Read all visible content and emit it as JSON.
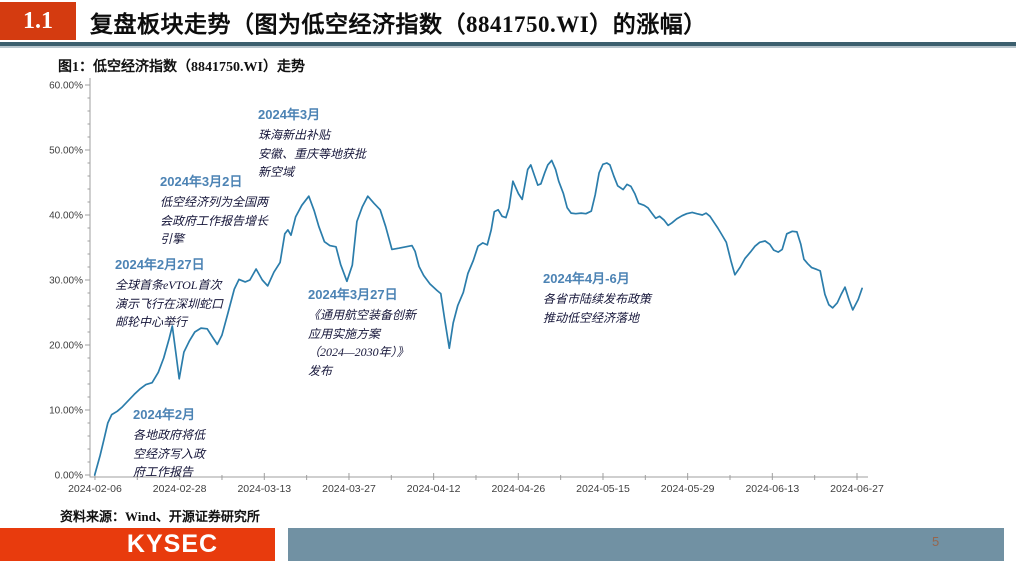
{
  "slide": {
    "section_number": "1.1",
    "title": "复盘板块走势（图为低空经济指数（8841750.WI）的涨幅）",
    "source": "资料来源：Wind、开源证券研究所",
    "logo_text": "KYSEC",
    "page_number": "5"
  },
  "colors": {
    "accent_red": "#d43b10",
    "logo_red": "#e83b0d",
    "line_blue": "#2b7dab",
    "annotation_date_blue": "#4c83b4",
    "annotation_body": "#16163a",
    "footer_bar_gray": "#7191a3",
    "header_rule": "#3c5f6e",
    "axis_gray": "#9f9f9f",
    "tick_label": "#3f3f3f"
  },
  "chart_data": {
    "type": "line",
    "title": "图1：低空经济指数（8841750.WI）走势",
    "xlabel": "",
    "ylabel": "",
    "ylim": [
      0,
      60
    ],
    "grid": false,
    "legend": "none",
    "y_ticks": [
      "0.00%",
      "10.00%",
      "20.00%",
      "30.00%",
      "40.00%",
      "50.00%",
      "60.00%"
    ],
    "x_ticks": [
      "2024-02-06",
      "2024-02-28",
      "2024-03-13",
      "2024-03-27",
      "2024-04-12",
      "2024-04-26",
      "2024-05-15",
      "2024-05-29",
      "2024-06-13",
      "2024-06-27"
    ],
    "series": [
      {
        "name": "低空经济指数（8841750.WI）涨幅",
        "unit": "%",
        "points": [
          [
            0.006,
            0.0
          ],
          [
            0.013,
            3.0
          ],
          [
            0.018,
            5.5
          ],
          [
            0.023,
            8.0
          ],
          [
            0.028,
            9.3
          ],
          [
            0.035,
            9.8
          ],
          [
            0.041,
            10.4
          ],
          [
            0.049,
            11.4
          ],
          [
            0.057,
            12.4
          ],
          [
            0.064,
            13.2
          ],
          [
            0.072,
            13.9
          ],
          [
            0.08,
            14.2
          ],
          [
            0.088,
            15.8
          ],
          [
            0.095,
            18.0
          ],
          [
            0.102,
            21.0
          ],
          [
            0.106,
            22.9
          ],
          [
            0.111,
            18.5
          ],
          [
            0.115,
            14.8
          ],
          [
            0.121,
            18.9
          ],
          [
            0.128,
            20.6
          ],
          [
            0.135,
            22.0
          ],
          [
            0.143,
            22.6
          ],
          [
            0.151,
            22.5
          ],
          [
            0.159,
            21.0
          ],
          [
            0.164,
            20.1
          ],
          [
            0.17,
            21.5
          ],
          [
            0.178,
            25.0
          ],
          [
            0.186,
            28.6
          ],
          [
            0.192,
            30.1
          ],
          [
            0.2,
            29.7
          ],
          [
            0.206,
            30.0
          ],
          [
            0.214,
            31.7
          ],
          [
            0.222,
            30.0
          ],
          [
            0.229,
            29.1
          ],
          [
            0.237,
            31.2
          ],
          [
            0.245,
            32.7
          ],
          [
            0.251,
            37.1
          ],
          [
            0.255,
            37.7
          ],
          [
            0.259,
            36.9
          ],
          [
            0.265,
            39.7
          ],
          [
            0.273,
            41.5
          ],
          [
            0.282,
            42.9
          ],
          [
            0.289,
            40.6
          ],
          [
            0.295,
            38.2
          ],
          [
            0.302,
            35.9
          ],
          [
            0.309,
            35.3
          ],
          [
            0.317,
            35.1
          ],
          [
            0.323,
            32.4
          ],
          [
            0.331,
            29.8
          ],
          [
            0.338,
            32.3
          ],
          [
            0.344,
            39.0
          ],
          [
            0.351,
            41.3
          ],
          [
            0.358,
            42.9
          ],
          [
            0.366,
            41.8
          ],
          [
            0.374,
            40.8
          ],
          [
            0.381,
            38.2
          ],
          [
            0.389,
            34.7
          ],
          [
            0.398,
            34.9
          ],
          [
            0.407,
            35.1
          ],
          [
            0.415,
            35.3
          ],
          [
            0.419,
            34.4
          ],
          [
            0.424,
            32.1
          ],
          [
            0.43,
            30.7
          ],
          [
            0.438,
            29.4
          ],
          [
            0.447,
            28.4
          ],
          [
            0.452,
            27.9
          ],
          [
            0.457,
            24.0
          ],
          [
            0.463,
            19.5
          ],
          [
            0.468,
            23.4
          ],
          [
            0.474,
            26.1
          ],
          [
            0.481,
            28.1
          ],
          [
            0.487,
            31.0
          ],
          [
            0.494,
            33.0
          ],
          [
            0.5,
            35.2
          ],
          [
            0.506,
            35.7
          ],
          [
            0.512,
            35.4
          ],
          [
            0.517,
            37.7
          ],
          [
            0.521,
            40.5
          ],
          [
            0.526,
            40.8
          ],
          [
            0.531,
            39.8
          ],
          [
            0.536,
            39.6
          ],
          [
            0.54,
            41.1
          ],
          [
            0.545,
            45.2
          ],
          [
            0.552,
            43.3
          ],
          [
            0.557,
            42.4
          ],
          [
            0.561,
            45.0
          ],
          [
            0.564,
            47.0
          ],
          [
            0.568,
            47.7
          ],
          [
            0.573,
            46.0
          ],
          [
            0.577,
            44.6
          ],
          [
            0.581,
            44.8
          ],
          [
            0.586,
            46.5
          ],
          [
            0.59,
            47.7
          ],
          [
            0.595,
            48.4
          ],
          [
            0.6,
            47.0
          ],
          [
            0.604,
            45.2
          ],
          [
            0.61,
            43.3
          ],
          [
            0.615,
            41.1
          ],
          [
            0.62,
            40.3
          ],
          [
            0.626,
            40.2
          ],
          [
            0.633,
            40.3
          ],
          [
            0.639,
            40.2
          ],
          [
            0.646,
            40.6
          ],
          [
            0.651,
            43.1
          ],
          [
            0.656,
            46.5
          ],
          [
            0.661,
            47.8
          ],
          [
            0.666,
            48.0
          ],
          [
            0.67,
            47.7
          ],
          [
            0.675,
            46.0
          ],
          [
            0.68,
            44.5
          ],
          [
            0.687,
            43.9
          ],
          [
            0.692,
            44.7
          ],
          [
            0.697,
            44.4
          ],
          [
            0.702,
            43.3
          ],
          [
            0.707,
            41.8
          ],
          [
            0.714,
            41.5
          ],
          [
            0.719,
            41.1
          ],
          [
            0.724,
            40.3
          ],
          [
            0.729,
            39.5
          ],
          [
            0.734,
            39.8
          ],
          [
            0.74,
            39.2
          ],
          [
            0.745,
            38.4
          ],
          [
            0.75,
            38.8
          ],
          [
            0.756,
            39.4
          ],
          [
            0.763,
            39.9
          ],
          [
            0.769,
            40.2
          ],
          [
            0.776,
            40.4
          ],
          [
            0.782,
            40.2
          ],
          [
            0.789,
            40.0
          ],
          [
            0.794,
            40.3
          ],
          [
            0.799,
            39.8
          ],
          [
            0.804,
            38.9
          ],
          [
            0.809,
            38.0
          ],
          [
            0.814,
            37.0
          ],
          [
            0.82,
            35.8
          ],
          [
            0.826,
            32.9
          ],
          [
            0.831,
            30.8
          ],
          [
            0.838,
            32.0
          ],
          [
            0.844,
            33.3
          ],
          [
            0.851,
            34.3
          ],
          [
            0.857,
            35.2
          ],
          [
            0.863,
            35.8
          ],
          [
            0.87,
            36.0
          ],
          [
            0.876,
            35.5
          ],
          [
            0.881,
            34.6
          ],
          [
            0.887,
            34.3
          ],
          [
            0.892,
            34.7
          ],
          [
            0.898,
            37.1
          ],
          [
            0.905,
            37.5
          ],
          [
            0.911,
            37.4
          ],
          [
            0.916,
            35.5
          ],
          [
            0.92,
            33.2
          ],
          [
            0.925,
            32.5
          ],
          [
            0.93,
            31.9
          ],
          [
            0.937,
            31.6
          ],
          [
            0.941,
            31.4
          ],
          [
            0.947,
            27.8
          ],
          [
            0.952,
            26.2
          ],
          [
            0.957,
            25.7
          ],
          [
            0.963,
            26.5
          ],
          [
            0.968,
            27.8
          ],
          [
            0.973,
            28.9
          ],
          [
            0.978,
            27.0
          ],
          [
            0.983,
            25.4
          ],
          [
            0.99,
            27.0
          ],
          [
            0.995,
            28.7
          ]
        ]
      }
    ],
    "annotations": [
      {
        "date": "2024年2月27日",
        "text": "全球首条eVTOL首次\n演示飞行在深圳蛇口\n邮轮中心举行"
      },
      {
        "date": "2024年3月2日",
        "text": "低空经济列为全国两\n会政府工作报告增长\n引擎"
      },
      {
        "date": "2024年3月",
        "text": "珠海新出补贴\n安徽、重庆等地获批\n新空域"
      },
      {
        "date": "2024年3月27日",
        "text": "《通用航空装备创新\n应用实施方案\n（2024—2030年）》\n发布"
      },
      {
        "date": "2024年4月-6月",
        "text": "各省市陆续发布政策\n推动低空经济落地"
      },
      {
        "date": "2024年2月",
        "text": "各地政府将低\n空经济写入政\n府工作报告"
      }
    ]
  }
}
